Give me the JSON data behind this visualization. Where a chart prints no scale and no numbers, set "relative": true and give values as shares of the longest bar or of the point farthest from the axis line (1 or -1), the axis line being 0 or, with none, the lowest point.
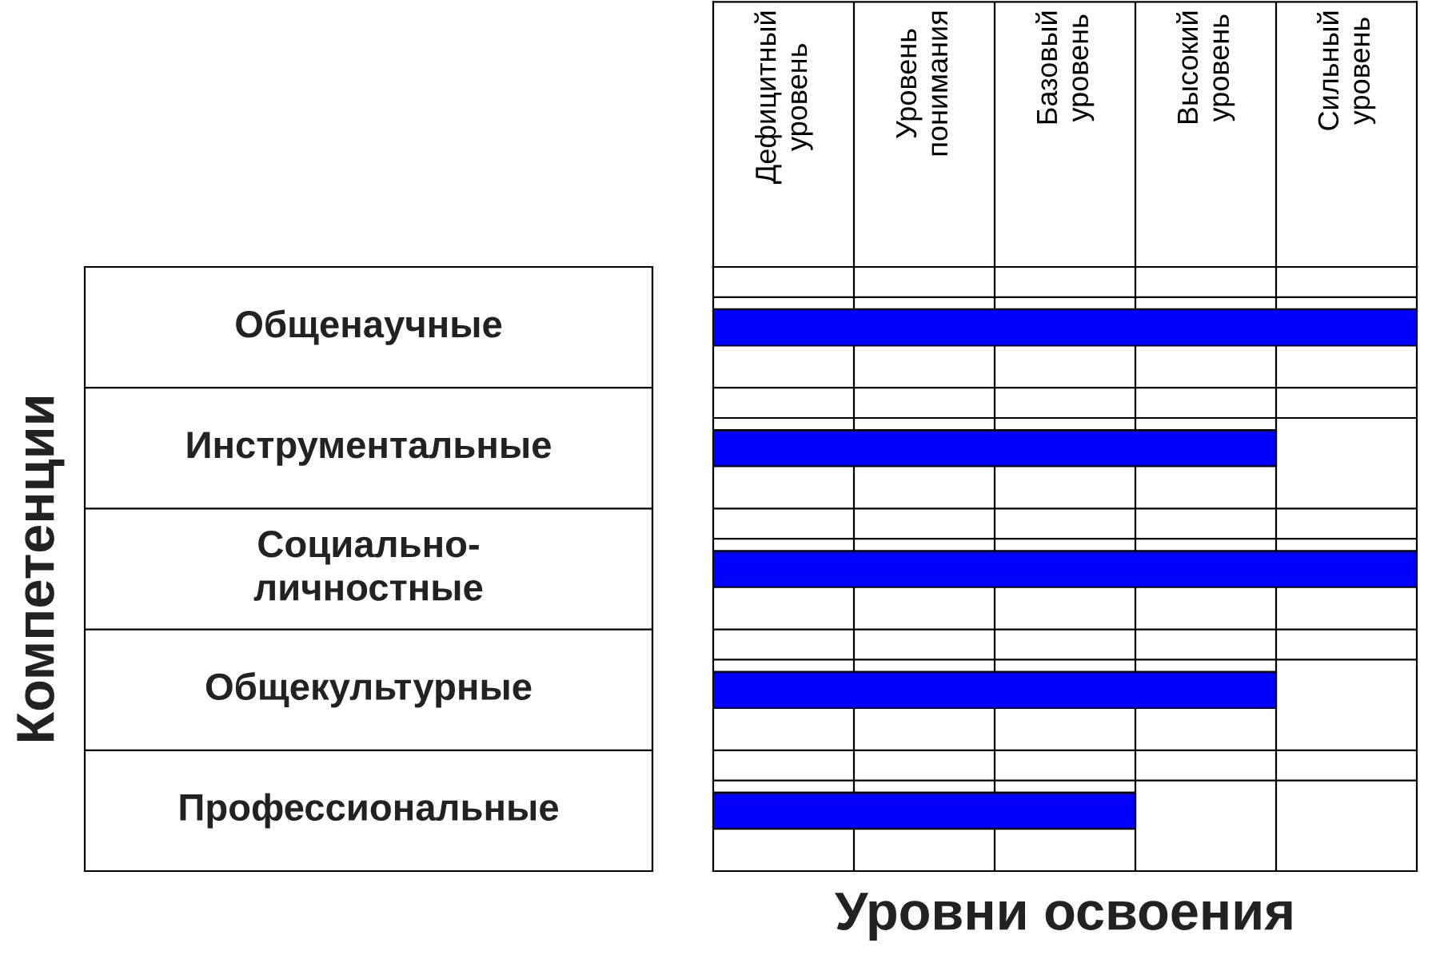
{
  "chart_data": {
    "type": "bar",
    "orientation": "horizontal",
    "relative": true,
    "xlabel": "Уровни освоения",
    "ylabel": "Компетенции",
    "categories": [
      "Общенаучные",
      "Инструментальные",
      "Социально-\nличностные",
      "Общекультурные",
      "Профессиональные"
    ],
    "values": [
      1,
      0.8,
      1,
      0.8,
      0.6
    ],
    "color": "#0000ff",
    "annotations": [
      "Дефицитный\nуровень",
      "Уровень\nпонимания",
      "Базовый\nуровень",
      "Высокий\nуровень",
      "Сильный\nуровень"
    ],
    "grid": true
  }
}
